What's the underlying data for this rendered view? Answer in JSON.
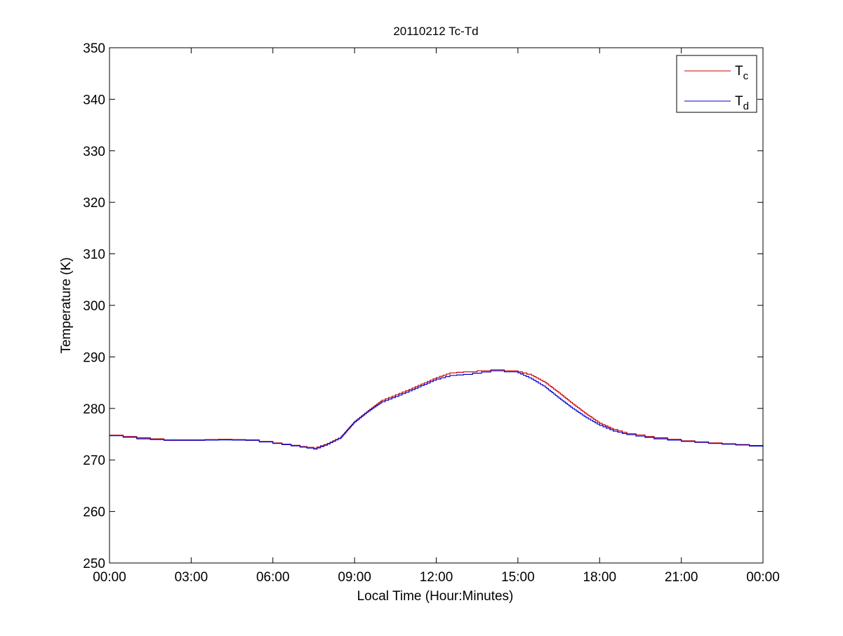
{
  "chart_data": {
    "type": "line",
    "title": "20110212 Tc-Td",
    "xlabel": "Local Time (Hour:Minutes)",
    "ylabel": "Temperature (K)",
    "xlim": [
      0,
      24
    ],
    "ylim": [
      250,
      350
    ],
    "xticks": [
      0,
      3,
      6,
      9,
      12,
      15,
      18,
      21,
      24
    ],
    "xtick_labels": [
      "00:00",
      "03:00",
      "06:00",
      "09:00",
      "12:00",
      "15:00",
      "18:00",
      "21:00",
      "00:00"
    ],
    "yticks": [
      250,
      260,
      270,
      280,
      290,
      300,
      310,
      320,
      330,
      340,
      350
    ],
    "ytick_labels": [
      "250",
      "260",
      "270",
      "280",
      "290",
      "300",
      "310",
      "320",
      "330",
      "340",
      "350"
    ],
    "grid": false,
    "legend_position": "top-right",
    "x_units": "hours",
    "series": [
      {
        "name": "T",
        "subscript": "c",
        "color": "#cc0000",
        "x": [
          0,
          1,
          2,
          3,
          4,
          5,
          6,
          7,
          7.5,
          8,
          8.5,
          9,
          9.5,
          10,
          11,
          12,
          12.5,
          13,
          14,
          15,
          15.5,
          16,
          16.5,
          17,
          17.5,
          18,
          18.5,
          19,
          20,
          21,
          22,
          23,
          24
        ],
        "values": [
          274.8,
          274.3,
          273.9,
          273.9,
          274.0,
          273.9,
          273.3,
          272.6,
          272.3,
          273.2,
          274.5,
          277.5,
          279.6,
          281.6,
          283.7,
          286.0,
          286.9,
          287.1,
          287.5,
          287.1,
          286.4,
          285.0,
          283.0,
          280.9,
          278.9,
          277.1,
          275.9,
          275.1,
          274.3,
          273.7,
          273.3,
          273.0,
          272.6
        ]
      },
      {
        "name": "T",
        "subscript": "d",
        "color": "#0000cc",
        "x": [
          0,
          1,
          2,
          3,
          4,
          5,
          6,
          7,
          7.5,
          8,
          8.5,
          9,
          9.5,
          10,
          11,
          12,
          12.5,
          13,
          14,
          15,
          15.5,
          16,
          16.5,
          17,
          17.5,
          18,
          18.5,
          19,
          20,
          21,
          22,
          23,
          24
        ],
        "values": [
          274.7,
          274.1,
          273.8,
          273.8,
          273.9,
          273.8,
          273.2,
          272.5,
          272.1,
          273.1,
          274.4,
          277.4,
          279.5,
          281.3,
          283.4,
          285.7,
          286.4,
          286.6,
          287.3,
          286.9,
          285.7,
          284.1,
          282.0,
          280.0,
          278.2,
          276.7,
          275.6,
          274.9,
          274.1,
          273.6,
          273.2,
          272.9,
          272.5
        ]
      }
    ]
  }
}
